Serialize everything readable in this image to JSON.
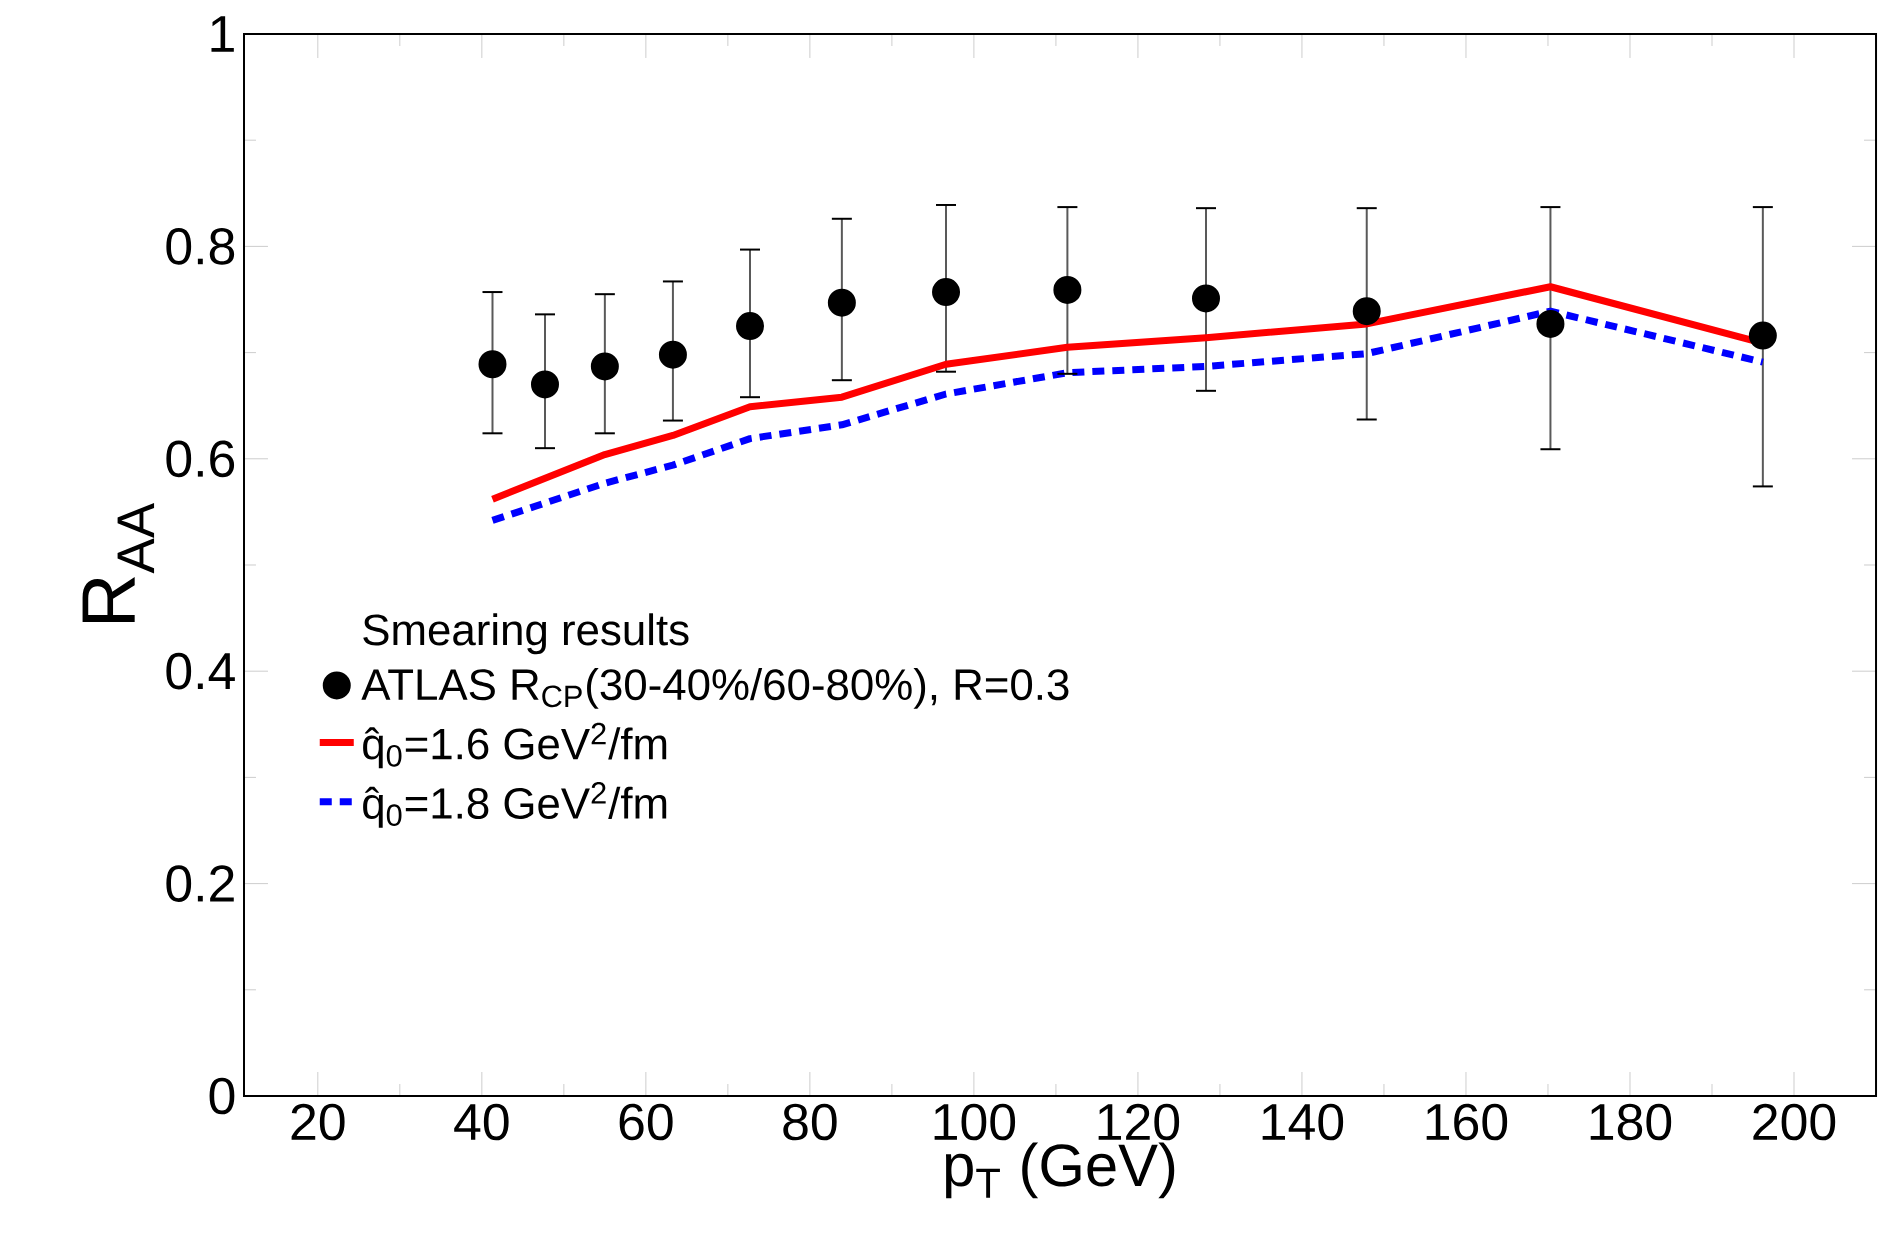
{
  "chart_data": {
    "type": "scatter",
    "xlabel": "p$_{T}$ (GeV)",
    "ylabel": "R$_{AA}$",
    "legend_title": "Smearing results",
    "xlim": [
      11,
      210
    ],
    "ylim": [
      0,
      1
    ],
    "xticks": [
      20,
      40,
      60,
      80,
      100,
      120,
      140,
      160,
      180,
      200
    ],
    "yticks": [
      0,
      0.2,
      0.4,
      0.6,
      0.8,
      1
    ],
    "grid": false,
    "legend": "left",
    "series": [
      {
        "name": "ATLAS R$_{CP}$(30-40%/60-80%), R=0.3",
        "color": "#000000",
        "x": [
          41.3,
          47.7,
          55.0,
          63.3,
          72.7,
          83.9,
          96.6,
          111.4,
          128.3,
          147.9,
          170.3,
          196.2
        ],
        "values": [
          0.689,
          0.67,
          0.687,
          0.698,
          0.725,
          0.747,
          0.757,
          0.759,
          0.751,
          0.739,
          0.727,
          0.716
        ],
        "errors": [
          [
            0.624,
            0.757
          ],
          [
            0.61,
            0.736
          ],
          [
            0.624,
            0.755
          ],
          [
            0.636,
            0.767
          ],
          [
            0.658,
            0.797
          ],
          [
            0.674,
            0.826
          ],
          [
            0.682,
            0.839
          ],
          [
            0.68,
            0.837
          ],
          [
            0.664,
            0.836
          ],
          [
            0.637,
            0.836
          ],
          [
            0.609,
            0.837
          ],
          [
            0.574,
            0.837
          ]
        ]
      },
      {
        "name": "q̂$_{0}$=1.6 GeV$^{2}$/fm",
        "type": "line",
        "line_style": "solid",
        "color": "#ff0000",
        "x": [
          41.3,
          55.0,
          63.3,
          72.7,
          83.9,
          96.6,
          111.4,
          128.3,
          147.9,
          170.3,
          196.2
        ],
        "values": [
          0.562,
          0.604,
          0.622,
          0.649,
          0.658,
          0.689,
          0.705,
          0.714,
          0.727,
          0.762,
          0.709
        ]
      },
      {
        "name": "q̂$_{0}$=1.8 GeV$^{2}$/fm",
        "type": "line",
        "line_style": "dashed",
        "color": "#0000ff",
        "x": [
          41.3,
          55.0,
          63.3,
          72.7,
          83.9,
          96.6,
          111.4,
          128.3,
          147.9,
          170.3,
          196.2
        ],
        "values": [
          0.542,
          0.577,
          0.594,
          0.619,
          0.632,
          0.661,
          0.681,
          0.687,
          0.699,
          0.739,
          0.691
        ]
      }
    ]
  }
}
